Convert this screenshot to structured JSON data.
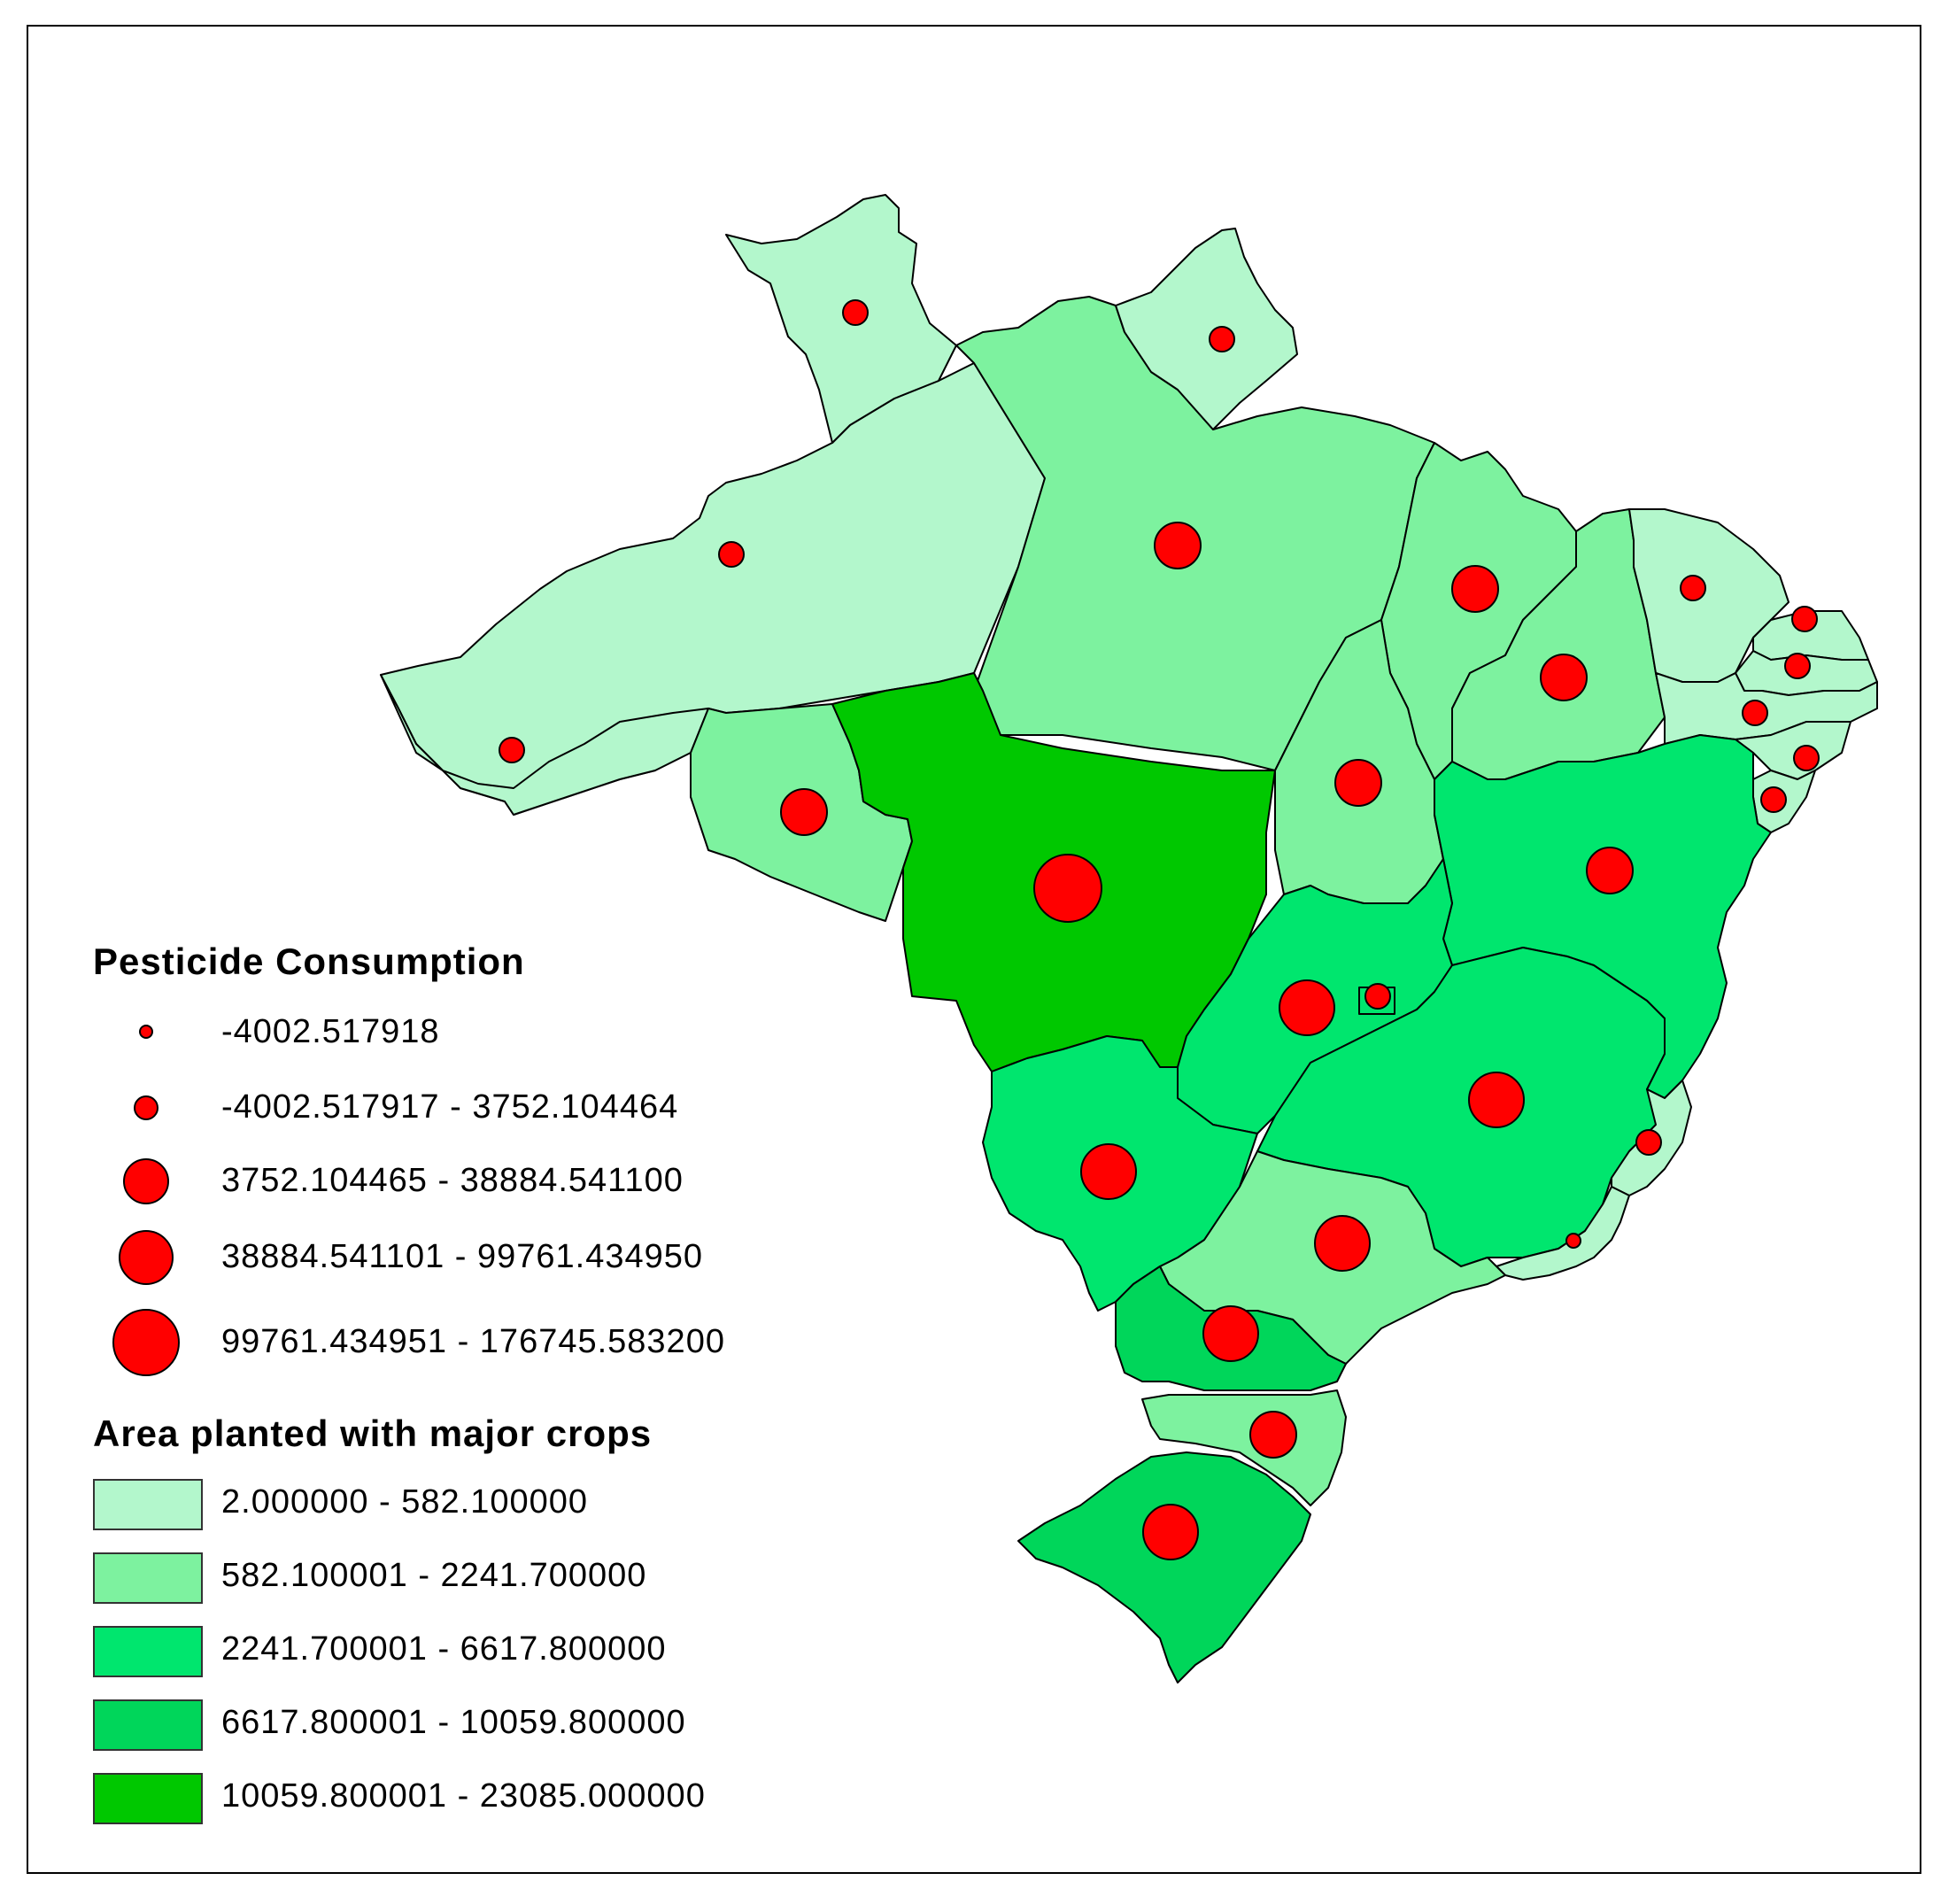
{
  "colors": {
    "class1": "#b3f7cc",
    "class2": "#7df29f",
    "class3": "#00e66e",
    "class4": "#00d65a",
    "class5": "#00c800",
    "dot": "#ff0000"
  },
  "legend": {
    "pesticide": {
      "title": "Pesticide Consumption",
      "classes": [
        {
          "label": "-4002.517918"
        },
        {
          "label": "-4002.517917 - 3752.104464"
        },
        {
          "label": "3752.104465 - 38884.541100"
        },
        {
          "label": "38884.541101 - 99761.434950"
        },
        {
          "label": "99761.434951 - 176745.583200"
        }
      ]
    },
    "area": {
      "title": "Area planted with major crops",
      "classes": [
        {
          "label": "2.000000 - 582.100000"
        },
        {
          "label": "582.100001 - 2241.700000"
        },
        {
          "label": "2241.700001 - 6617.800000"
        },
        {
          "label": "6617.800001 - 10059.800000"
        },
        {
          "label": "10059.800001 - 23085.000000"
        }
      ]
    }
  }
}
